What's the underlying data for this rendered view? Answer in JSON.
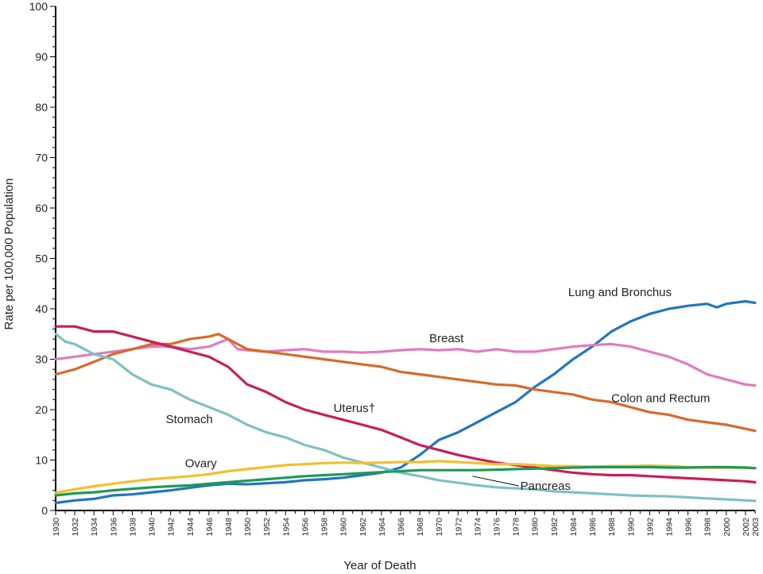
{
  "chart_data": {
    "type": "line",
    "title": "",
    "xlabel": "Year of Death",
    "ylabel": "Rate per 100,000 Population",
    "xlim": [
      1930,
      2003
    ],
    "ylim": [
      0,
      100
    ],
    "y_ticks": [
      0,
      10,
      20,
      30,
      40,
      50,
      60,
      70,
      80,
      90,
      100
    ],
    "x_tick_labels": [
      "1930",
      "1932",
      "1934",
      "1936",
      "1938",
      "1940",
      "1942",
      "1944",
      "1946",
      "1948",
      "1950",
      "1952",
      "1954",
      "1956",
      "1958",
      "1960",
      "1962",
      "1964",
      "1966",
      "1968",
      "1970",
      "1972",
      "1974",
      "1976",
      "1978",
      "1980",
      "1982",
      "1984",
      "1986",
      "1988",
      "1990",
      "1992",
      "1994",
      "1996",
      "1998",
      "2000",
      "2002",
      "2003"
    ],
    "grid": false,
    "legend": "none (series labeled directly on lines)",
    "series": [
      {
        "name": "Lung and Bronchus",
        "color": "#2176c0",
        "x": [
          1930,
          1932,
          1934,
          1936,
          1938,
          1940,
          1942,
          1944,
          1946,
          1948,
          1950,
          1952,
          1954,
          1956,
          1958,
          1960,
          1962,
          1964,
          1966,
          1968,
          1970,
          1972,
          1974,
          1976,
          1978,
          1980,
          1982,
          1984,
          1986,
          1988,
          1990,
          1992,
          1994,
          1996,
          1998,
          1999,
          2000,
          2002,
          2003
        ],
        "y": [
          1.5,
          2,
          2.3,
          3,
          3.2,
          3.6,
          4,
          4.5,
          5,
          5.3,
          5.2,
          5.4,
          5.6,
          6,
          6.2,
          6.5,
          7,
          7.5,
          8.5,
          11,
          14,
          15.5,
          17.5,
          19.5,
          21.5,
          24.5,
          27,
          30,
          32.5,
          35.5,
          37.5,
          39,
          40,
          40.6,
          41,
          40.3,
          41,
          41.5,
          41.2
        ]
      },
      {
        "name": "Breast",
        "color": "#e07bc2",
        "x": [
          1930,
          1932,
          1934,
          1936,
          1938,
          1940,
          1942,
          1944,
          1946,
          1948,
          1949,
          1950,
          1952,
          1954,
          1956,
          1958,
          1960,
          1962,
          1964,
          1966,
          1968,
          1970,
          1972,
          1974,
          1976,
          1978,
          1980,
          1982,
          1984,
          1986,
          1988,
          1990,
          1992,
          1994,
          1996,
          1998,
          2000,
          2002,
          2003
        ],
        "y": [
          30,
          30.5,
          31,
          31.5,
          32,
          32.5,
          32.5,
          32,
          32.5,
          34,
          32,
          31.8,
          31.5,
          31.8,
          32,
          31.5,
          31.5,
          31.3,
          31.5,
          31.8,
          32,
          31.8,
          32,
          31.5,
          32,
          31.5,
          31.5,
          32,
          32.5,
          32.8,
          33,
          32.5,
          31.5,
          30.5,
          29,
          27,
          26,
          25,
          24.8
        ]
      },
      {
        "name": "Colon and Rectum",
        "color": "#d8692b",
        "x": [
          1930,
          1932,
          1934,
          1936,
          1938,
          1940,
          1942,
          1944,
          1946,
          1947,
          1948,
          1950,
          1952,
          1954,
          1956,
          1958,
          1960,
          1962,
          1964,
          1966,
          1968,
          1970,
          1972,
          1974,
          1976,
          1978,
          1980,
          1982,
          1984,
          1986,
          1988,
          1990,
          1992,
          1994,
          1996,
          1998,
          2000,
          2002,
          2003
        ],
        "y": [
          27,
          28,
          29.5,
          31,
          32,
          33,
          33,
          34,
          34.5,
          35,
          34,
          32,
          31.5,
          31,
          30.5,
          30,
          29.5,
          29,
          28.5,
          27.5,
          27,
          26.5,
          26,
          25.5,
          25,
          24.8,
          24,
          23.5,
          23,
          22,
          21.5,
          20.5,
          19.5,
          19,
          18,
          17.5,
          17,
          16.2,
          15.8
        ]
      },
      {
        "name": "Uterus†",
        "color": "#c81e59",
        "x": [
          1930,
          1932,
          1934,
          1936,
          1938,
          1940,
          1942,
          1944,
          1946,
          1948,
          1950,
          1952,
          1954,
          1956,
          1958,
          1960,
          1962,
          1964,
          1966,
          1968,
          1970,
          1972,
          1974,
          1976,
          1978,
          1980,
          1982,
          1984,
          1986,
          1988,
          1990,
          1992,
          1994,
          1996,
          1998,
          2000,
          2002,
          2003
        ],
        "y": [
          36.5,
          36.5,
          35.5,
          35.5,
          34.5,
          33.5,
          32.5,
          31.5,
          30.5,
          28.5,
          25,
          23.5,
          21.5,
          20,
          19,
          18,
          17,
          16,
          14.5,
          13,
          12,
          11,
          10.2,
          9.5,
          9,
          8.5,
          8,
          7.5,
          7.2,
          7,
          7,
          6.8,
          6.6,
          6.4,
          6.2,
          6,
          5.8,
          5.6
        ]
      },
      {
        "name": "Stomach",
        "color": "#7fc0c4",
        "x": [
          1930,
          1931,
          1932,
          1934,
          1936,
          1937,
          1938,
          1940,
          1942,
          1944,
          1946,
          1948,
          1950,
          1952,
          1954,
          1956,
          1958,
          1960,
          1962,
          1964,
          1966,
          1968,
          1970,
          1972,
          1974,
          1976,
          1978,
          1980,
          1982,
          1984,
          1986,
          1988,
          1990,
          1992,
          1994,
          1996,
          1998,
          2000,
          2002,
          2003
        ],
        "y": [
          35,
          33.5,
          33,
          31,
          30,
          28.5,
          27,
          25,
          24,
          22,
          20.5,
          19,
          17,
          15.5,
          14.5,
          13,
          12,
          10.5,
          9.5,
          8.5,
          7.5,
          6.8,
          6,
          5.5,
          5,
          4.6,
          4.4,
          4.2,
          3.8,
          3.6,
          3.4,
          3.2,
          3,
          2.9,
          2.8,
          2.6,
          2.4,
          2.2,
          2,
          1.9
        ]
      },
      {
        "name": "Ovary",
        "color": "#f2bf2d",
        "x": [
          1930,
          1932,
          1934,
          1936,
          1938,
          1940,
          1942,
          1944,
          1946,
          1948,
          1950,
          1952,
          1954,
          1956,
          1958,
          1960,
          1962,
          1964,
          1966,
          1968,
          1970,
          1972,
          1974,
          1976,
          1978,
          1980,
          1982,
          1984,
          1986,
          1988,
          1990,
          1992,
          1994,
          1996,
          1998,
          2000,
          2002,
          2003
        ],
        "y": [
          3.5,
          4.2,
          4.8,
          5.3,
          5.8,
          6.2,
          6.5,
          6.8,
          7.2,
          7.8,
          8.2,
          8.6,
          9,
          9.2,
          9.4,
          9.5,
          9.4,
          9.5,
          9.6,
          9.6,
          9.8,
          9.6,
          9.4,
          9.2,
          9.2,
          9,
          8.8,
          8.8,
          8.7,
          8.8,
          8.8,
          8.9,
          8.8,
          8.6,
          8.5,
          8.5,
          8.5,
          8.4
        ]
      },
      {
        "name": "Pancreas",
        "color": "#1e9a55",
        "x": [
          1930,
          1932,
          1934,
          1936,
          1938,
          1940,
          1942,
          1944,
          1946,
          1948,
          1950,
          1952,
          1954,
          1956,
          1958,
          1960,
          1962,
          1964,
          1966,
          1968,
          1970,
          1972,
          1974,
          1976,
          1978,
          1980,
          1982,
          1984,
          1986,
          1988,
          1990,
          1992,
          1994,
          1996,
          1998,
          2000,
          2002,
          2003
        ],
        "y": [
          3,
          3.4,
          3.6,
          4,
          4.3,
          4.6,
          4.8,
          5,
          5.3,
          5.6,
          5.9,
          6.2,
          6.5,
          6.8,
          7,
          7.2,
          7.4,
          7.6,
          7.8,
          8,
          8,
          8,
          8,
          8.1,
          8.2,
          8.3,
          8.4,
          8.5,
          8.6,
          8.6,
          8.6,
          8.6,
          8.5,
          8.5,
          8.6,
          8.6,
          8.5,
          8.4
        ]
      }
    ],
    "annotations": [
      {
        "series": "Lung and Bronchus",
        "text": "Lung and Bronchus",
        "x": 1983.5,
        "y": 42.5,
        "anchor": "start"
      },
      {
        "series": "Breast",
        "text": "Breast",
        "x": 1969,
        "y": 33.4,
        "anchor": "start"
      },
      {
        "series": "Colon and Rectum",
        "text": "Colon and Rectum",
        "x": 1988,
        "y": 21.5,
        "anchor": "start"
      },
      {
        "series": "Uterus†",
        "text": "Uterus†",
        "x": 1959,
        "y": 19.5,
        "anchor": "start"
      },
      {
        "series": "Stomach",
        "text": "Stomach",
        "x": 1941.5,
        "y": 17.3,
        "anchor": "start"
      },
      {
        "series": "Ovary",
        "text": "Ovary",
        "x": 1943.5,
        "y": 8.6,
        "anchor": "start"
      },
      {
        "series": "Pancreas",
        "text": "Pancreas",
        "x": 1978.5,
        "y": 4.1,
        "anchor": "start",
        "leader_to": [
          1973.5,
          6.8
        ]
      }
    ]
  }
}
